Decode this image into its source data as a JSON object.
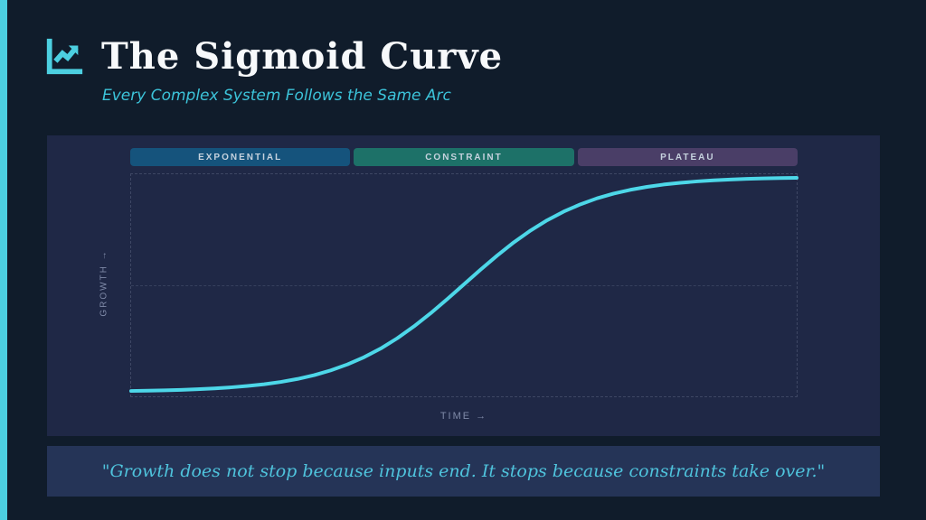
{
  "header": {
    "title": "The Sigmoid Curve",
    "subtitle": "Every Complex System Follows the Same Arc",
    "icon": "chart-line-up-icon"
  },
  "colors": {
    "slide_background": "#101c2b",
    "accent_teal": "#4ccfe0",
    "panel_background": "#1f2846",
    "quote_background": "#253457",
    "curve": "#4dd7e8",
    "subtitle_teal": "#3cc4da",
    "axis_label": "#7f8aa8"
  },
  "quote": {
    "text": "\"Growth does not stop because inputs end. It stops because constraints take over.\""
  },
  "chart_data": {
    "type": "line",
    "title": "",
    "xlabel": "TIME →",
    "ylabel": "GROWTH →",
    "xlim": [
      0,
      1
    ],
    "ylim": [
      0,
      1
    ],
    "grid": "single horizontal dashed midline at y=0.5; dashed plot border",
    "legend_position": "none",
    "phases": [
      {
        "label": "EXPONENTIAL",
        "color": "#15537c",
        "x_range": [
          0,
          0.333
        ]
      },
      {
        "label": "CONSTRAINT",
        "color": "#1d7168",
        "x_range": [
          0.333,
          0.667
        ]
      },
      {
        "label": "PLATEAU",
        "color": "#4a3e67",
        "x_range": [
          0.667,
          1
        ]
      }
    ],
    "series": [
      {
        "name": "sigmoid-growth",
        "color": "#4dd7e8",
        "x": [
          0.0,
          0.025,
          0.05,
          0.075,
          0.1,
          0.125,
          0.15,
          0.175,
          0.2,
          0.225,
          0.25,
          0.275,
          0.3,
          0.325,
          0.35,
          0.375,
          0.4,
          0.425,
          0.45,
          0.475,
          0.5,
          0.525,
          0.55,
          0.575,
          0.6,
          0.625,
          0.65,
          0.675,
          0.7,
          0.725,
          0.75,
          0.775,
          0.8,
          0.825,
          0.85,
          0.875,
          0.9,
          0.925,
          0.95,
          0.975,
          1.0
        ],
        "values": [
          0.0041,
          0.0054,
          0.007,
          0.0092,
          0.0121,
          0.0159,
          0.0208,
          0.0273,
          0.0356,
          0.0463,
          0.0601,
          0.0777,
          0.0998,
          0.1273,
          0.1611,
          0.2018,
          0.2497,
          0.3047,
          0.3659,
          0.4317,
          0.5,
          0.5683,
          0.6341,
          0.6953,
          0.7503,
          0.7982,
          0.8389,
          0.8727,
          0.9003,
          0.9223,
          0.9399,
          0.9537,
          0.9644,
          0.9727,
          0.9792,
          0.9841,
          0.9879,
          0.9908,
          0.993,
          0.9947,
          0.9959
        ]
      }
    ]
  }
}
